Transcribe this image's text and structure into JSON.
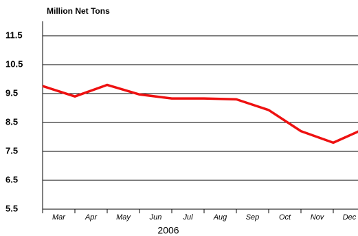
{
  "chart_data": {
    "type": "line",
    "title": "Million Net Tons",
    "xlabel": "2006",
    "categories": [
      null,
      "Mar",
      "Apr",
      "May",
      "Jun",
      "Jul",
      "Aug",
      "Sep",
      "Oct",
      "Nov",
      "Dec"
    ],
    "series": [
      {
        "name": "Million Net Tons",
        "color": "#ee1111",
        "values": [
          9.76,
          9.4,
          9.8,
          9.47,
          9.33,
          9.33,
          9.3,
          8.93,
          8.2,
          7.8,
          8.3
        ]
      }
    ],
    "ylim": [
      5.5,
      12
    ],
    "yticks": [
      5.5,
      6.5,
      7.5,
      8.5,
      9.5,
      10.5,
      11.5
    ],
    "grid": true
  }
}
